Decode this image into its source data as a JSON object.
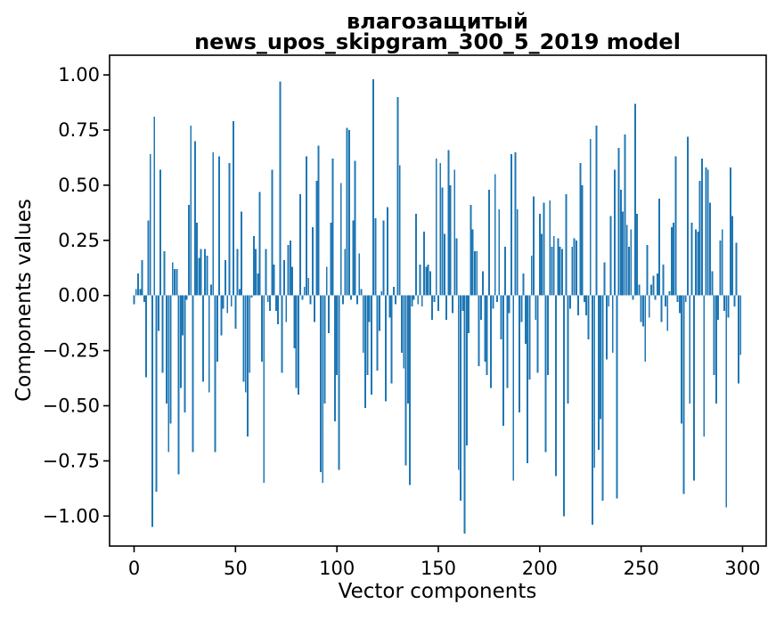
{
  "chart_data": {
    "type": "bar",
    "title_line1": "влагозащитый",
    "title_line2": "news_upos_skipgram_300_5_2019 model",
    "xlabel": "Vector components",
    "ylabel": "Components values",
    "x_tick_labels": [
      "0",
      "50",
      "100",
      "150",
      "200",
      "250",
      "300"
    ],
    "x_tick_values": [
      0,
      50,
      100,
      150,
      200,
      250,
      300
    ],
    "y_tick_labels": [
      "1.00",
      "0.75",
      "0.50",
      "0.25",
      "0.00",
      "−0.25",
      "−0.50",
      "−0.75",
      "−1.00"
    ],
    "y_tick_values": [
      1.0,
      0.75,
      0.5,
      0.25,
      0.0,
      -0.25,
      -0.5,
      -0.75,
      -1.0
    ],
    "xlim": [
      -12,
      312
    ],
    "ylim": [
      -1.13,
      1.09
    ],
    "grid": false,
    "legend": "none",
    "bar_color": "#1f77b4",
    "background_color": "#ffffff",
    "n_components": 300,
    "values": [
      -0.04,
      0.03,
      0.1,
      0.03,
      0.16,
      -0.03,
      -0.37,
      0.34,
      0.64,
      -1.05,
      0.81,
      -0.89,
      -0.16,
      0.57,
      -0.35,
      0.2,
      -0.49,
      -0.71,
      -0.58,
      0.15,
      0.12,
      0.12,
      -0.81,
      -0.42,
      -0.18,
      -0.53,
      -0.02,
      0.41,
      0.77,
      -0.71,
      0.7,
      0.33,
      0.17,
      0.21,
      -0.39,
      0.21,
      0.18,
      -0.44,
      0.05,
      0.65,
      -0.71,
      -0.3,
      0.63,
      -0.18,
      -0.06,
      0.16,
      -0.08,
      0.6,
      -0.05,
      0.79,
      -0.15,
      0.21,
      0.03,
      0.38,
      -0.39,
      -0.44,
      -0.64,
      -0.35,
      -0.01,
      0.27,
      0.21,
      0.1,
      0.47,
      -0.3,
      -0.85,
      0.21,
      -0.03,
      -0.07,
      0.57,
      0.14,
      -0.07,
      -0.13,
      0.97,
      -0.35,
      0.16,
      -0.12,
      0.23,
      0.25,
      0.13,
      -0.24,
      -0.42,
      -0.45,
      0.46,
      -0.02,
      0.04,
      0.63,
      0.08,
      -0.04,
      0.31,
      -0.12,
      0.52,
      0.68,
      -0.8,
      -0.85,
      -0.49,
      0.13,
      -0.17,
      0.33,
      0.62,
      -0.57,
      -0.36,
      -0.79,
      0.51,
      -0.04,
      0.21,
      0.76,
      0.75,
      -0.02,
      0.34,
      0.61,
      -0.04,
      0.19,
      0.03,
      -0.26,
      -0.51,
      -0.36,
      -0.12,
      -0.45,
      0.98,
      0.35,
      -0.34,
      -0.16,
      0.02,
      0.34,
      -0.48,
      0.4,
      -0.1,
      -0.4,
      0.04,
      -0.04,
      0.9,
      0.59,
      -0.26,
      -0.33,
      -0.77,
      -0.49,
      -0.86,
      -0.05,
      -0.02,
      0.37,
      -0.04,
      0.14,
      -0.05,
      0.29,
      0.13,
      0.14,
      0.11,
      -0.11,
      -0.03,
      0.62,
      -0.07,
      0.6,
      0.49,
      0.28,
      -0.11,
      0.66,
      0.5,
      -0.08,
      0.57,
      0.26,
      -0.79,
      -0.93,
      -0.07,
      -1.08,
      -0.68,
      -0.17,
      0.41,
      0.3,
      0.2,
      0.2,
      -0.32,
      -0.11,
      0.11,
      -0.3,
      -0.36,
      0.48,
      -0.42,
      -0.06,
      0.55,
      -0.03,
      0.39,
      -0.2,
      -0.59,
      0.22,
      -0.42,
      -0.08,
      0.64,
      -0.84,
      0.65,
      0.39,
      -0.53,
      -0.12,
      0.1,
      -0.22,
      -0.76,
      -0.38,
      0.18,
      0.45,
      -0.11,
      -0.35,
      0.37,
      0.28,
      0.42,
      -0.71,
      -0.36,
      0.43,
      0.22,
      0.27,
      -0.82,
      0.26,
      0.22,
      0.21,
      -1.0,
      0.46,
      -0.49,
      -0.06,
      0.22,
      0.26,
      0.25,
      -0.09,
      0.6,
      0.5,
      -0.03,
      -0.09,
      -0.2,
      0.71,
      -1.04,
      -0.78,
      0.77,
      -0.7,
      -0.56,
      -0.93,
      0.15,
      -0.29,
      -0.05,
      0.36,
      -0.26,
      0.57,
      -0.92,
      0.67,
      0.48,
      0.38,
      0.73,
      0.32,
      0.22,
      0.3,
      -0.02,
      0.87,
      0.37,
      0.05,
      -0.12,
      -0.14,
      -0.3,
      0.23,
      -0.1,
      0.05,
      0.09,
      -0.02,
      0.1,
      0.44,
      -0.12,
      0.14,
      -0.05,
      -0.16,
      0.02,
      0.31,
      0.33,
      0.63,
      -0.03,
      -0.08,
      -0.58,
      -0.9,
      -0.03,
      0.72,
      -0.49,
      0.33,
      -0.84,
      0.3,
      0.29,
      0.52,
      0.62,
      -0.64,
      0.58,
      0.57,
      0.42,
      0.11,
      -0.36,
      -0.49,
      -0.11,
      0.25,
      0.3,
      -0.07,
      -0.96,
      -0.1,
      0.58,
      0.36,
      -0.05,
      0.24,
      -0.4,
      -0.27
    ]
  }
}
